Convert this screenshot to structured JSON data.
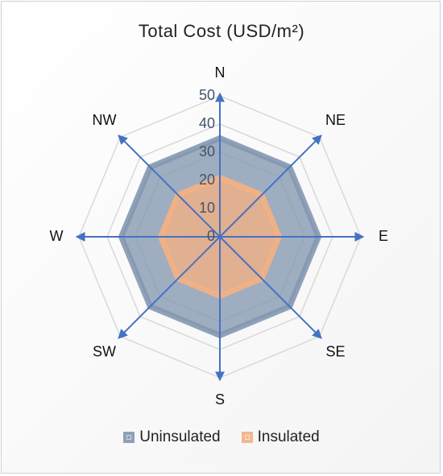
{
  "chart_data": {
    "type": "radar",
    "title": "Total Cost (USD/m²)",
    "categories": [
      "N",
      "NE",
      "E",
      "SE",
      "S",
      "SW",
      "W",
      "NW"
    ],
    "ticks": [
      "0",
      "10",
      "20",
      "30",
      "40",
      "50"
    ],
    "rlim": [
      0,
      50
    ],
    "legend_position": "bottom",
    "grid": true,
    "series": [
      {
        "name": "Uninsulated",
        "values": [
          35,
          35,
          35,
          35,
          35,
          35,
          35,
          35
        ],
        "color": "#8497b0"
      },
      {
        "name": "Insulated",
        "values": [
          21,
          21,
          21,
          21,
          21,
          21,
          21,
          21
        ],
        "color": "#f4b183"
      }
    ],
    "colors": {
      "axis_arrow": "#4472c4",
      "grid": "#d9d9d9",
      "tick_text": "#44546a"
    }
  }
}
